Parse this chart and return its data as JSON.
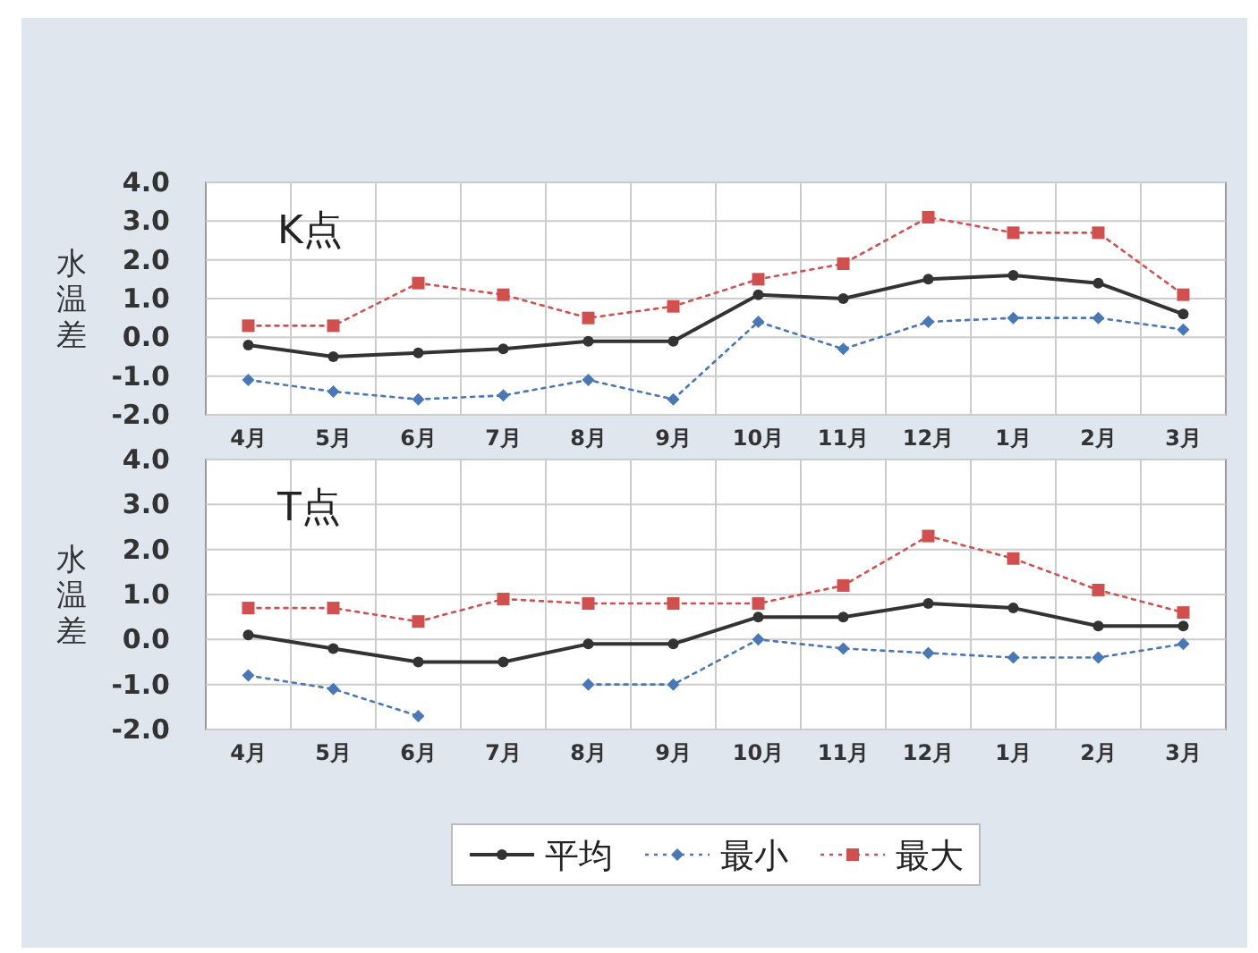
{
  "chart_data": [
    {
      "type": "line",
      "title": "K点",
      "ylabel": "水温差",
      "categories": [
        "4月",
        "5月",
        "6月",
        "7月",
        "8月",
        "9月",
        "10月",
        "11月",
        "12月",
        "1月",
        "2月",
        "3月"
      ],
      "ylim": [
        -2.0,
        4.0
      ],
      "yticks": [
        {
          "value": -2,
          "label": "-2.0"
        },
        {
          "value": -1,
          "label": "-1.0"
        },
        {
          "value": 0,
          "label": "0.0"
        },
        {
          "value": 1,
          "label": "1.0"
        },
        {
          "value": 2,
          "label": "2.0"
        },
        {
          "value": 3,
          "label": "3.0"
        },
        {
          "value": 4,
          "label": "4.0"
        }
      ],
      "grid": true,
      "series": [
        {
          "color": "#333333",
          "marker": "circle",
          "line_style": "solid",
          "values": [
            -0.2,
            -0.5,
            -0.4,
            -0.3,
            -0.1,
            -0.1,
            1.1,
            1.0,
            1.5,
            1.6,
            1.4,
            0.6
          ]
        },
        {
          "color": "#4a78b5",
          "marker": "diamond",
          "line_style": "dotted",
          "values": [
            -1.1,
            -1.4,
            -1.6,
            -1.5,
            -1.1,
            -1.6,
            0.4,
            -0.3,
            0.4,
            0.5,
            0.5,
            0.2
          ]
        },
        {
          "color": "#d05050",
          "marker": "square",
          "line_style": "dotted",
          "values": [
            0.3,
            0.3,
            1.4,
            1.1,
            0.5,
            0.8,
            1.5,
            1.9,
            3.1,
            2.7,
            2.7,
            1.1
          ]
        }
      ]
    },
    {
      "type": "line",
      "title": "T点",
      "ylabel": "水温差",
      "categories": [
        "4月",
        "5月",
        "6月",
        "7月",
        "8月",
        "9月",
        "10月",
        "11月",
        "12月",
        "1月",
        "2月",
        "3月"
      ],
      "ylim": [
        -2.0,
        4.0
      ],
      "yticks": [
        {
          "value": -2,
          "label": "-2.0"
        },
        {
          "value": -1,
          "label": "-1.0"
        },
        {
          "value": 0,
          "label": "0.0"
        },
        {
          "value": 1,
          "label": "1.0"
        },
        {
          "value": 2,
          "label": "2.0"
        },
        {
          "value": 3,
          "label": "3.0"
        },
        {
          "value": 4,
          "label": "4.0"
        }
      ],
      "grid": true,
      "legend": "bottom",
      "series": [
        {
          "name": "平均",
          "color": "#333333",
          "marker": "circle",
          "line_style": "solid",
          "values": [
            0.1,
            -0.2,
            -0.5,
            -0.5,
            -0.1,
            -0.1,
            0.5,
            0.5,
            0.8,
            0.7,
            0.3,
            0.3
          ]
        },
        {
          "name": "最小",
          "color": "#4a78b5",
          "marker": "diamond",
          "line_style": "dotted",
          "values": [
            -0.8,
            -1.1,
            -1.7,
            null,
            -1.0,
            -1.0,
            0.0,
            -0.2,
            -0.3,
            -0.4,
            -0.4,
            -0.1
          ]
        },
        {
          "name": "最大",
          "color": "#d05050",
          "marker": "square",
          "line_style": "dotted",
          "values": [
            0.7,
            0.7,
            0.4,
            0.9,
            0.8,
            0.8,
            0.8,
            1.2,
            2.3,
            1.8,
            1.1,
            0.6
          ]
        }
      ]
    }
  ]
}
